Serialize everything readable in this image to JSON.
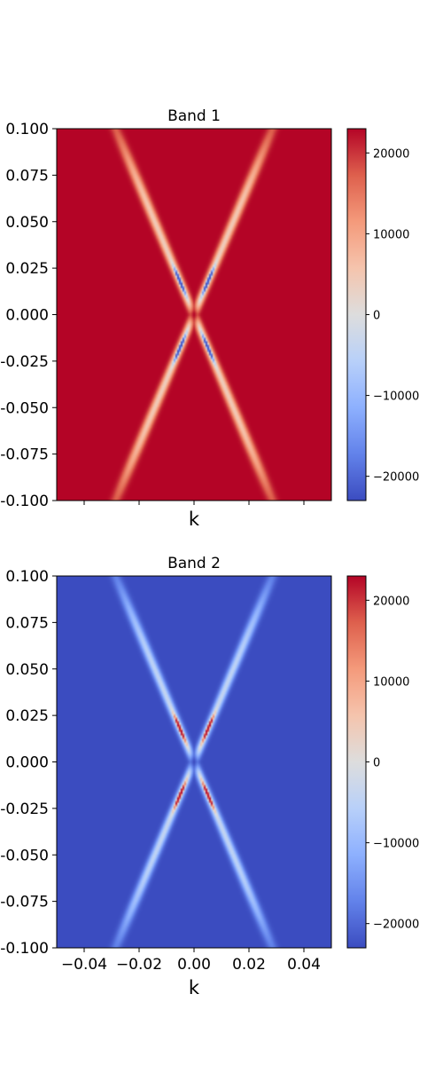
{
  "colors": {
    "colormap": "coolwarm",
    "cmap_low": "#3b4cc0",
    "cmap_mid": "#dddddd",
    "cmap_high": "#b40426",
    "axis": "#000000"
  },
  "chart_data": [
    {
      "type": "heatmap",
      "title": "Band 1",
      "xlabel": "k",
      "ylabel": "",
      "xlim": [
        -0.05,
        0.05
      ],
      "ylim": [
        -0.1,
        0.1
      ],
      "xticks_visible": false,
      "x_ticks": [
        -0.04,
        -0.02,
        0.0,
        0.02,
        0.04
      ],
      "y_ticks": [
        0.1,
        0.075,
        0.05,
        0.025,
        0.0,
        -0.025,
        -0.05,
        -0.075,
        -0.1
      ],
      "y_tick_labels": [
        "0.100",
        "0.075",
        "0.050",
        "0.025",
        "0.000",
        "-0.025",
        "-0.050",
        "-0.075",
        "-0.100"
      ],
      "background_value": 23000,
      "feature": "X-shaped dispersion crossing at k=0, E=0 with lighter bands along lines |E| ≈ 3.5|k| and small opposite-sign lobes near E ≈ ±0.02",
      "colorbar": {
        "min": -23000,
        "max": 23000,
        "ticks": [
          20000,
          10000,
          0,
          -10000,
          -20000
        ],
        "tick_labels": [
          "20000",
          "10000",
          "0",
          "−10000",
          "−20000"
        ]
      }
    },
    {
      "type": "heatmap",
      "title": "Band 2",
      "xlabel": "k",
      "ylabel": "",
      "xlim": [
        -0.05,
        0.05
      ],
      "ylim": [
        -0.1,
        0.1
      ],
      "xticks_visible": true,
      "x_ticks": [
        -0.04,
        -0.02,
        0.0,
        0.02,
        0.04
      ],
      "x_tick_labels": [
        "−0.04",
        "−0.02",
        "0.00",
        "0.02",
        "0.04"
      ],
      "y_ticks": [
        0.1,
        0.075,
        0.05,
        0.025,
        0.0,
        -0.025,
        -0.05,
        -0.075,
        -0.1
      ],
      "y_tick_labels": [
        "0.100",
        "0.075",
        "0.050",
        "0.025",
        "0.000",
        "-0.025",
        "-0.050",
        "-0.075",
        "-0.100"
      ],
      "background_value": -23000,
      "feature": "X-shaped dispersion crossing at k=0, E=0 with lighter bands along lines |E| ≈ 3.5|k| and small opposite-sign lobes near E ≈ ±0.02",
      "colorbar": {
        "min": -23000,
        "max": 23000,
        "ticks": [
          20000,
          10000,
          0,
          -10000,
          -20000
        ],
        "tick_labels": [
          "20000",
          "10000",
          "0",
          "−10000",
          "−20000"
        ]
      }
    }
  ]
}
